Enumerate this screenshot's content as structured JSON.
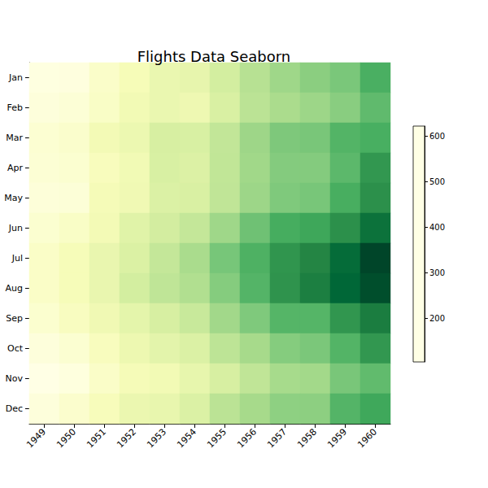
{
  "chart_data": {
    "type": "heatmap",
    "title": "Flights Data Seaborn",
    "x": [
      "1949",
      "1950",
      "1951",
      "1952",
      "1953",
      "1954",
      "1955",
      "1956",
      "1957",
      "1958",
      "1959",
      "1960"
    ],
    "y": [
      "Jan",
      "Feb",
      "Mar",
      "Apr",
      "May",
      "Jun",
      "Jul",
      "Aug",
      "Sep",
      "Oct",
      "Nov",
      "Dec"
    ],
    "cells": [
      [
        112,
        115,
        145,
        171,
        196,
        204,
        242,
        284,
        315,
        340,
        360,
        417
      ],
      [
        118,
        126,
        150,
        180,
        196,
        188,
        233,
        277,
        301,
        318,
        342,
        391
      ],
      [
        132,
        141,
        178,
        193,
        236,
        235,
        267,
        317,
        356,
        362,
        406,
        419
      ],
      [
        129,
        135,
        163,
        181,
        235,
        227,
        269,
        313,
        348,
        348,
        396,
        461
      ],
      [
        121,
        125,
        172,
        183,
        229,
        234,
        270,
        318,
        355,
        363,
        420,
        472
      ],
      [
        135,
        149,
        178,
        218,
        243,
        264,
        315,
        374,
        422,
        435,
        472,
        535
      ],
      [
        148,
        170,
        199,
        230,
        264,
        302,
        364,
        413,
        465,
        491,
        548,
        622
      ],
      [
        148,
        170,
        199,
        242,
        272,
        293,
        347,
        405,
        467,
        505,
        559,
        606
      ],
      [
        136,
        158,
        184,
        209,
        237,
        259,
        312,
        355,
        404,
        404,
        463,
        508
      ],
      [
        119,
        133,
        162,
        191,
        211,
        229,
        274,
        306,
        347,
        359,
        407,
        461
      ],
      [
        104,
        114,
        146,
        172,
        180,
        203,
        237,
        271,
        305,
        310,
        362,
        390
      ],
      [
        118,
        140,
        166,
        194,
        201,
        229,
        278,
        306,
        336,
        337,
        405,
        432
      ]
    ],
    "colorbar": {
      "range": [
        104,
        622
      ],
      "ticks": [
        200,
        300,
        400,
        500,
        600
      ]
    }
  }
}
